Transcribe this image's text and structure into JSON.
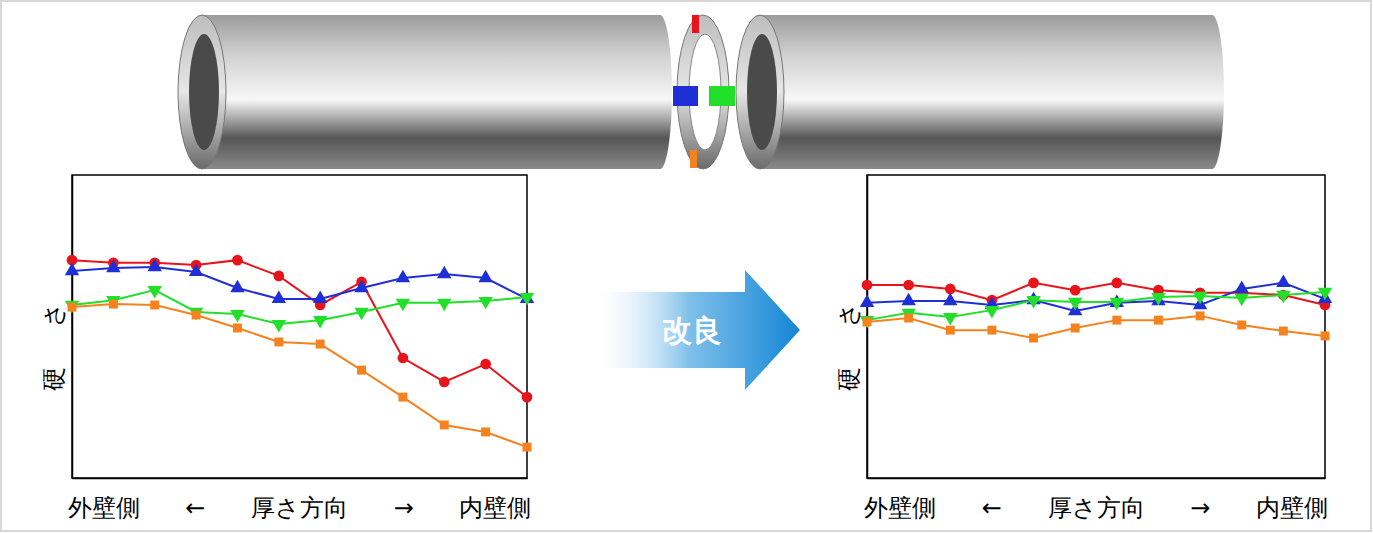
{
  "chart_data": [
    {
      "type": "line",
      "xlabel": "外壁側 ← 厚さ方向 → 内壁側",
      "ylabel": "硬さ",
      "x": [
        0,
        1,
        2,
        3,
        4,
        5,
        6,
        7,
        8,
        9,
        10,
        11
      ],
      "xlim": [
        0,
        11
      ],
      "xticks": [],
      "ylim": [
        0,
        100
      ],
      "yticks": [],
      "tick_labels": false,
      "series": [
        {
          "color": "#e8141b",
          "marker": "circle",
          "values": [
            71.9,
            71.0,
            71.0,
            70.3,
            71.9,
            66.7,
            57.1,
            64.7,
            39.6,
            31.7,
            37.6,
            26.7
          ]
        },
        {
          "color": "#1f2fd6",
          "marker": "triangle-up",
          "values": [
            68.3,
            69.3,
            69.6,
            68.0,
            62.7,
            59.1,
            59.1,
            62.7,
            66.0,
            67.3,
            66.0,
            59.1
          ]
        },
        {
          "color": "#22e02a",
          "marker": "triangle-down",
          "values": [
            57.1,
            58.7,
            62.0,
            54.8,
            54.1,
            50.8,
            52.1,
            54.8,
            57.8,
            57.8,
            58.4,
            59.7
          ]
        },
        {
          "color": "#f5821f",
          "marker": "square",
          "values": [
            56.4,
            57.4,
            57.1,
            53.8,
            49.5,
            44.9,
            44.2,
            35.6,
            26.7,
            17.5,
            15.2,
            10.2
          ]
        }
      ]
    },
    {
      "type": "line",
      "xlabel": "外壁側 ← 厚さ方向 → 内壁側",
      "ylabel": "硬さ",
      "x": [
        0,
        1,
        2,
        3,
        4,
        5,
        6,
        7,
        8,
        9,
        10,
        11
      ],
      "xlim": [
        0,
        11
      ],
      "xticks": [],
      "ylim": [
        0,
        100
      ],
      "yticks": [],
      "tick_labels": false,
      "series": [
        {
          "color": "#e8141b",
          "marker": "circle",
          "values": [
            63.7,
            63.7,
            62.4,
            58.7,
            64.4,
            62.0,
            64.4,
            62.0,
            61.1,
            61.1,
            60.4,
            57.1
          ]
        },
        {
          "color": "#1f2fd6",
          "marker": "triangle-up",
          "values": [
            57.8,
            58.4,
            58.4,
            57.1,
            58.7,
            55.1,
            57.8,
            58.4,
            57.1,
            62.4,
            64.4,
            59.1
          ]
        },
        {
          "color": "#22e02a",
          "marker": "triangle-down",
          "values": [
            52.1,
            54.5,
            53.1,
            55.4,
            58.7,
            58.1,
            58.1,
            59.7,
            60.1,
            59.4,
            60.4,
            61.4
          ]
        },
        {
          "color": "#f5821f",
          "marker": "square",
          "values": [
            51.5,
            52.8,
            48.8,
            48.8,
            46.2,
            49.5,
            52.1,
            52.1,
            53.5,
            50.5,
            48.5,
            46.9
          ]
        }
      ]
    }
  ],
  "arrow_label": "改良"
}
